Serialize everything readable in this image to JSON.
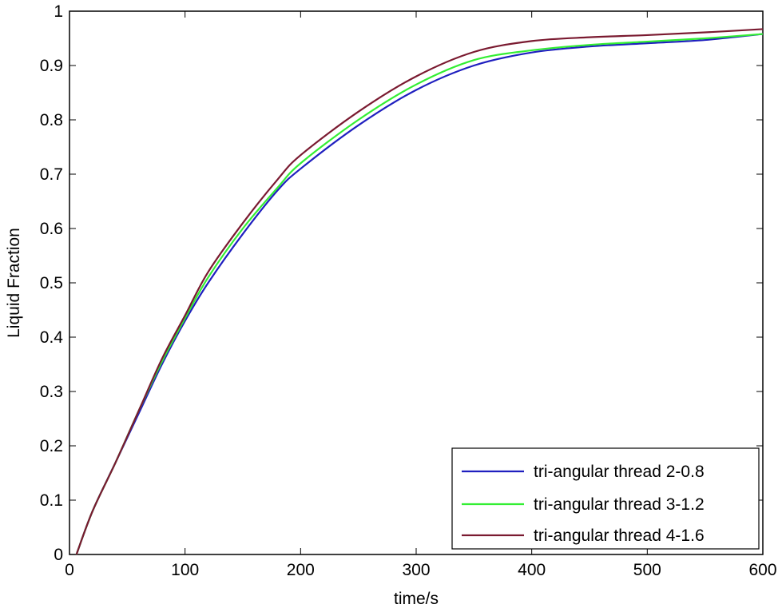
{
  "chart_data": {
    "type": "line",
    "title": "",
    "xlabel": "time/s",
    "ylabel": "Liquid Fraction",
    "xlim": [
      0,
      600
    ],
    "ylim": [
      0,
      1
    ],
    "x_ticks": [
      "0",
      "100",
      "200",
      "300",
      "400",
      "500",
      "600"
    ],
    "y_ticks": [
      "0",
      "0.1",
      "0.2",
      "0.3",
      "0.4",
      "0.5",
      "0.6",
      "0.7",
      "0.8",
      "0.9",
      "1"
    ],
    "grid": false,
    "legend_position": "bottom-right",
    "x": [
      6,
      20,
      40,
      60,
      80,
      100,
      120,
      150,
      180,
      200,
      250,
      300,
      350,
      400,
      450,
      500,
      550,
      600
    ],
    "series": [
      {
        "name": "tri-angular thread 2-0.8",
        "color": "#1f1fbf",
        "values": [
          0,
          0.08,
          0.17,
          0.26,
          0.35,
          0.43,
          0.5,
          0.59,
          0.67,
          0.71,
          0.79,
          0.855,
          0.9,
          0.924,
          0.935,
          0.941,
          0.947,
          0.958
        ]
      },
      {
        "name": "tri-angular thread 3-1.2",
        "color": "#33ee33",
        "values": [
          0,
          0.08,
          0.17,
          0.265,
          0.355,
          0.435,
          0.51,
          0.6,
          0.675,
          0.72,
          0.8,
          0.865,
          0.91,
          0.928,
          0.938,
          0.944,
          0.95,
          0.958
        ]
      },
      {
        "name": "tri-angular thread 4-1.6",
        "color": "#7a1a30",
        "values": [
          0,
          0.08,
          0.17,
          0.265,
          0.36,
          0.44,
          0.52,
          0.61,
          0.69,
          0.735,
          0.815,
          0.88,
          0.925,
          0.945,
          0.952,
          0.956,
          0.961,
          0.967
        ]
      }
    ]
  }
}
